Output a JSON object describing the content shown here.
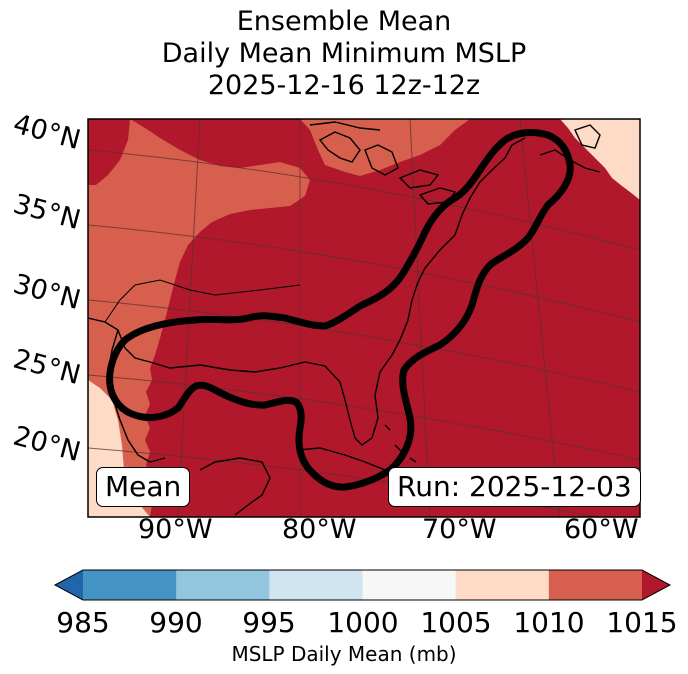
{
  "titles": [
    "Ensemble Mean",
    "Daily Mean Minimum MSLP",
    "2025-12-16 12z-12z"
  ],
  "map": {
    "lat_labels": [
      "40°N",
      "35°N",
      "30°N",
      "25°N",
      "20°N"
    ],
    "lon_labels": [
      "90°W",
      "80°W",
      "70°W",
      "60°W"
    ],
    "mean_label": "Mean",
    "run_label": "Run: 2025-12-03",
    "contour_color": "#000000"
  },
  "colorbar": {
    "ticks": [
      "985",
      "990",
      "995",
      "1000",
      "1005",
      "1010",
      "1015"
    ],
    "label": "MSLP Daily Mean (mb)",
    "colors": [
      "#2166ac",
      "#4393c3",
      "#92c5de",
      "#d1e5f0",
      "#f7f7f7",
      "#fddbc7",
      "#d6604d",
      "#b2182b"
    ],
    "extend": "both"
  }
}
